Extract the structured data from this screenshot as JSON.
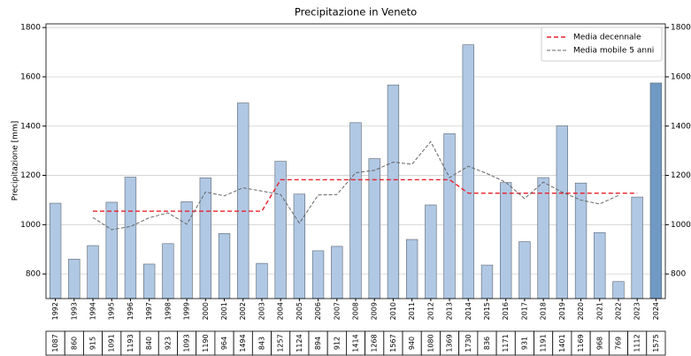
{
  "chart_data": {
    "type": "bar",
    "title": "Precipitazione in Veneto",
    "ylabel": "Precipitazione [mm]",
    "categories": [
      "1992",
      "1993",
      "1994",
      "1995",
      "1996",
      "1997",
      "1998",
      "1999",
      "2000",
      "2001",
      "2002",
      "2003",
      "2004",
      "2005",
      "2006",
      "2007",
      "2008",
      "2009",
      "2010",
      "2011",
      "2012",
      "2013",
      "2014",
      "2015",
      "2016",
      "2017",
      "2018",
      "2019",
      "2020",
      "2021",
      "2022",
      "2023",
      "2024"
    ],
    "series": [
      {
        "name": "Precipitazione",
        "type": "bar",
        "edgecolor": "#5a6470",
        "colors": [
          "#b0c8e4",
          "#b0c8e4",
          "#b0c8e4",
          "#b0c8e4",
          "#b0c8e4",
          "#b0c8e4",
          "#b0c8e4",
          "#b0c8e4",
          "#b0c8e4",
          "#b0c8e4",
          "#b0c8e4",
          "#b0c8e4",
          "#b0c8e4",
          "#b0c8e4",
          "#b0c8e4",
          "#b0c8e4",
          "#b0c8e4",
          "#b0c8e4",
          "#b0c8e4",
          "#b0c8e4",
          "#b0c8e4",
          "#b0c8e4",
          "#b0c8e4",
          "#b0c8e4",
          "#b0c8e4",
          "#b0c8e4",
          "#b0c8e4",
          "#b0c8e4",
          "#b0c8e4",
          "#b0c8e4",
          "#b0c8e4",
          "#b0c8e4",
          "#7099c4"
        ],
        "values": [
          1087,
          860,
          915,
          1091,
          1193,
          840,
          923,
          1093,
          1190,
          964,
          1494,
          843,
          1257,
          1124,
          894,
          912,
          1414,
          1268,
          1567,
          940,
          1080,
          1369,
          1730,
          836,
          1171,
          931,
          1191,
          1401,
          1169,
          968,
          769,
          1112,
          1575
        ]
      },
      {
        "name": "Media decennale",
        "type": "line",
        "color": "#e8202a",
        "dash": "5,3",
        "width": 1.4,
        "values": [
          null,
          null,
          1054.6,
          1054.6,
          1054.6,
          1054.6,
          1054.6,
          1054.6,
          1054.6,
          1054.6,
          1054.6,
          1054.6,
          1182.5,
          1182.5,
          1182.5,
          1182.5,
          1182.5,
          1182.5,
          1182.5,
          1182.5,
          1182.5,
          1182.5,
          1127.8,
          1127.8,
          1127.8,
          1127.8,
          1127.8,
          1127.8,
          1127.8,
          1127.8,
          1127.8,
          1127.8,
          null
        ]
      },
      {
        "name": "Media mobile 5 anni",
        "type": "line",
        "color": "#666666",
        "dash": "4,2",
        "width": 1,
        "values": [
          null,
          null,
          1029.2,
          979.8,
          992.4,
          1028,
          1047.8,
          1002,
          1132.8,
          1116.8,
          1149.6,
          1136.4,
          1122.4,
          1006,
          1120.2,
          1122.4,
          1211,
          1220.2,
          1253.8,
          1244.8,
          1337.2,
          1191,
          1237.2,
          1207.4,
          1171.8,
          1106,
          1172.6,
          1132,
          1099.6,
          1083.8,
          1118.6,
          null,
          null
        ]
      }
    ],
    "ylim": [
      700,
      1815
    ],
    "yticks": [
      800,
      1000,
      1200,
      1400,
      1600,
      1800
    ],
    "grid": true,
    "legend": "upper right",
    "right_axis": true
  }
}
